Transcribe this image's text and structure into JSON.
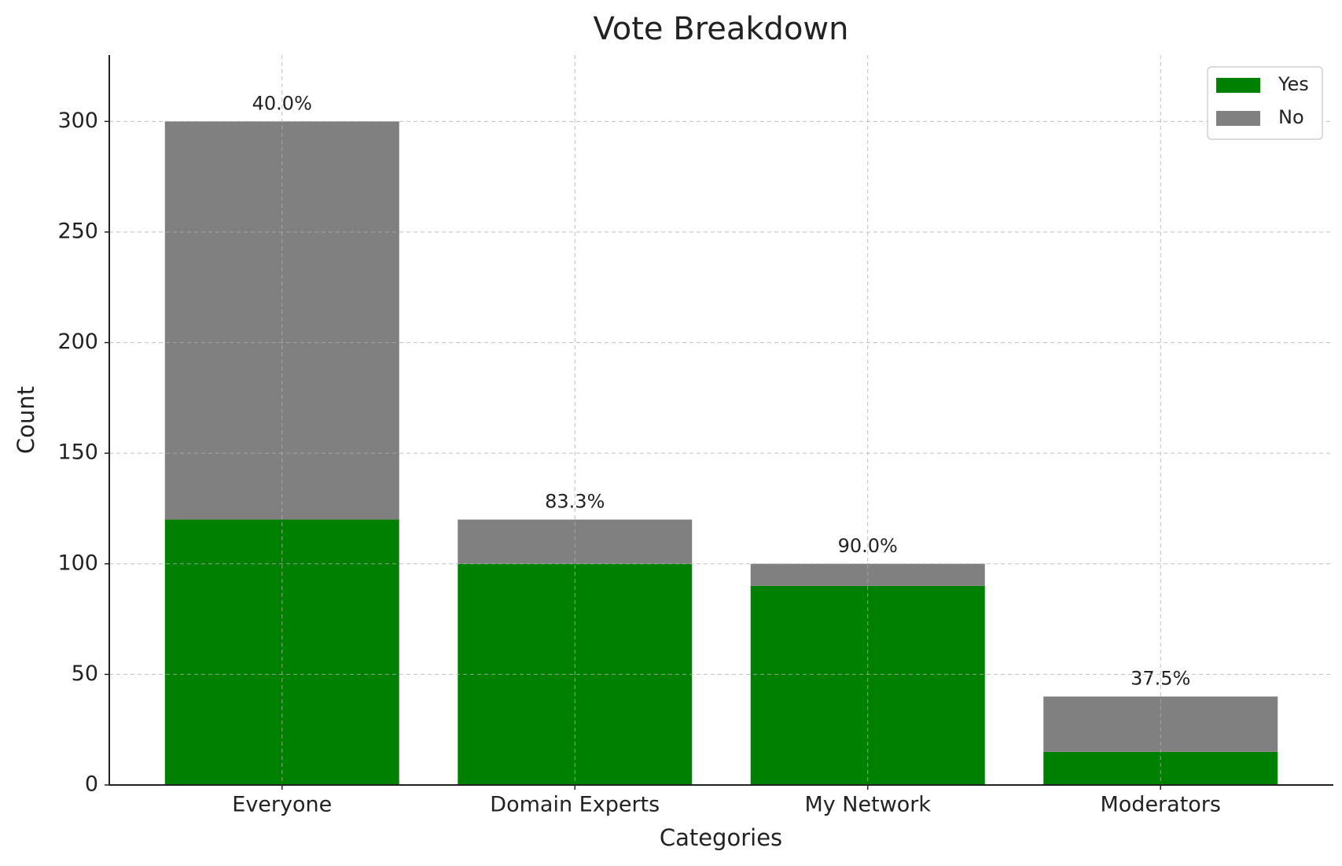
{
  "chart_data": {
    "type": "stacked_bar",
    "title": "Vote Breakdown",
    "x_label": "Categories",
    "y_label": "Count",
    "categories": [
      "Everyone",
      "Domain Experts",
      "My Network",
      "Moderators"
    ],
    "series": [
      {
        "name": "Yes",
        "color": "#008000",
        "values": [
          120,
          100,
          90,
          15
        ]
      },
      {
        "name": "No",
        "color": "#808080",
        "values": [
          180,
          20,
          10,
          25
        ]
      }
    ],
    "annotations": [
      "40.0%",
      "83.3%",
      "90.0%",
      "37.5%"
    ],
    "ylim": [
      0,
      330
    ],
    "yticks": [
      0,
      50,
      100,
      150,
      200,
      250,
      300
    ],
    "grid": true,
    "legend": "upper right"
  }
}
